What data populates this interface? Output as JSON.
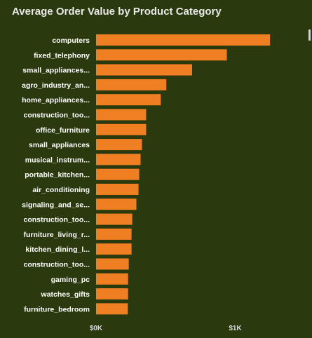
{
  "title": "Average Order Value by Product Category",
  "colors": {
    "background": "#2b3a0e",
    "bar": "#f07f24",
    "text": "#ffffff",
    "title": "#e8e8e8"
  },
  "chart_data": {
    "type": "bar",
    "orientation": "horizontal",
    "title": "Average Order Value by Product Category",
    "xlabel": "",
    "ylabel": "",
    "categories": [
      "computers",
      "fixed_telephony",
      "small_appliances...",
      "agro_industry_an...",
      "home_appliances...",
      "construction_too...",
      "office_furniture",
      "small_appliances",
      "musical_instrum...",
      "portable_kitchen...",
      "air_conditioning",
      "signaling_and_se...",
      "construction_too...",
      "furniture_living_r...",
      "kitchen_dining_l...",
      "construction_too...",
      "gaming_pc",
      "watches_gifts",
      "furniture_bedroom"
    ],
    "values": [
      1250,
      940,
      690,
      505,
      465,
      360,
      360,
      330,
      320,
      310,
      305,
      290,
      260,
      255,
      255,
      235,
      230,
      230,
      228
    ],
    "xlim": [
      0,
      1250
    ],
    "xticks": [
      0,
      1000
    ],
    "xtick_labels": [
      "$0K",
      "$1K"
    ],
    "grid": false,
    "legend": "none"
  }
}
